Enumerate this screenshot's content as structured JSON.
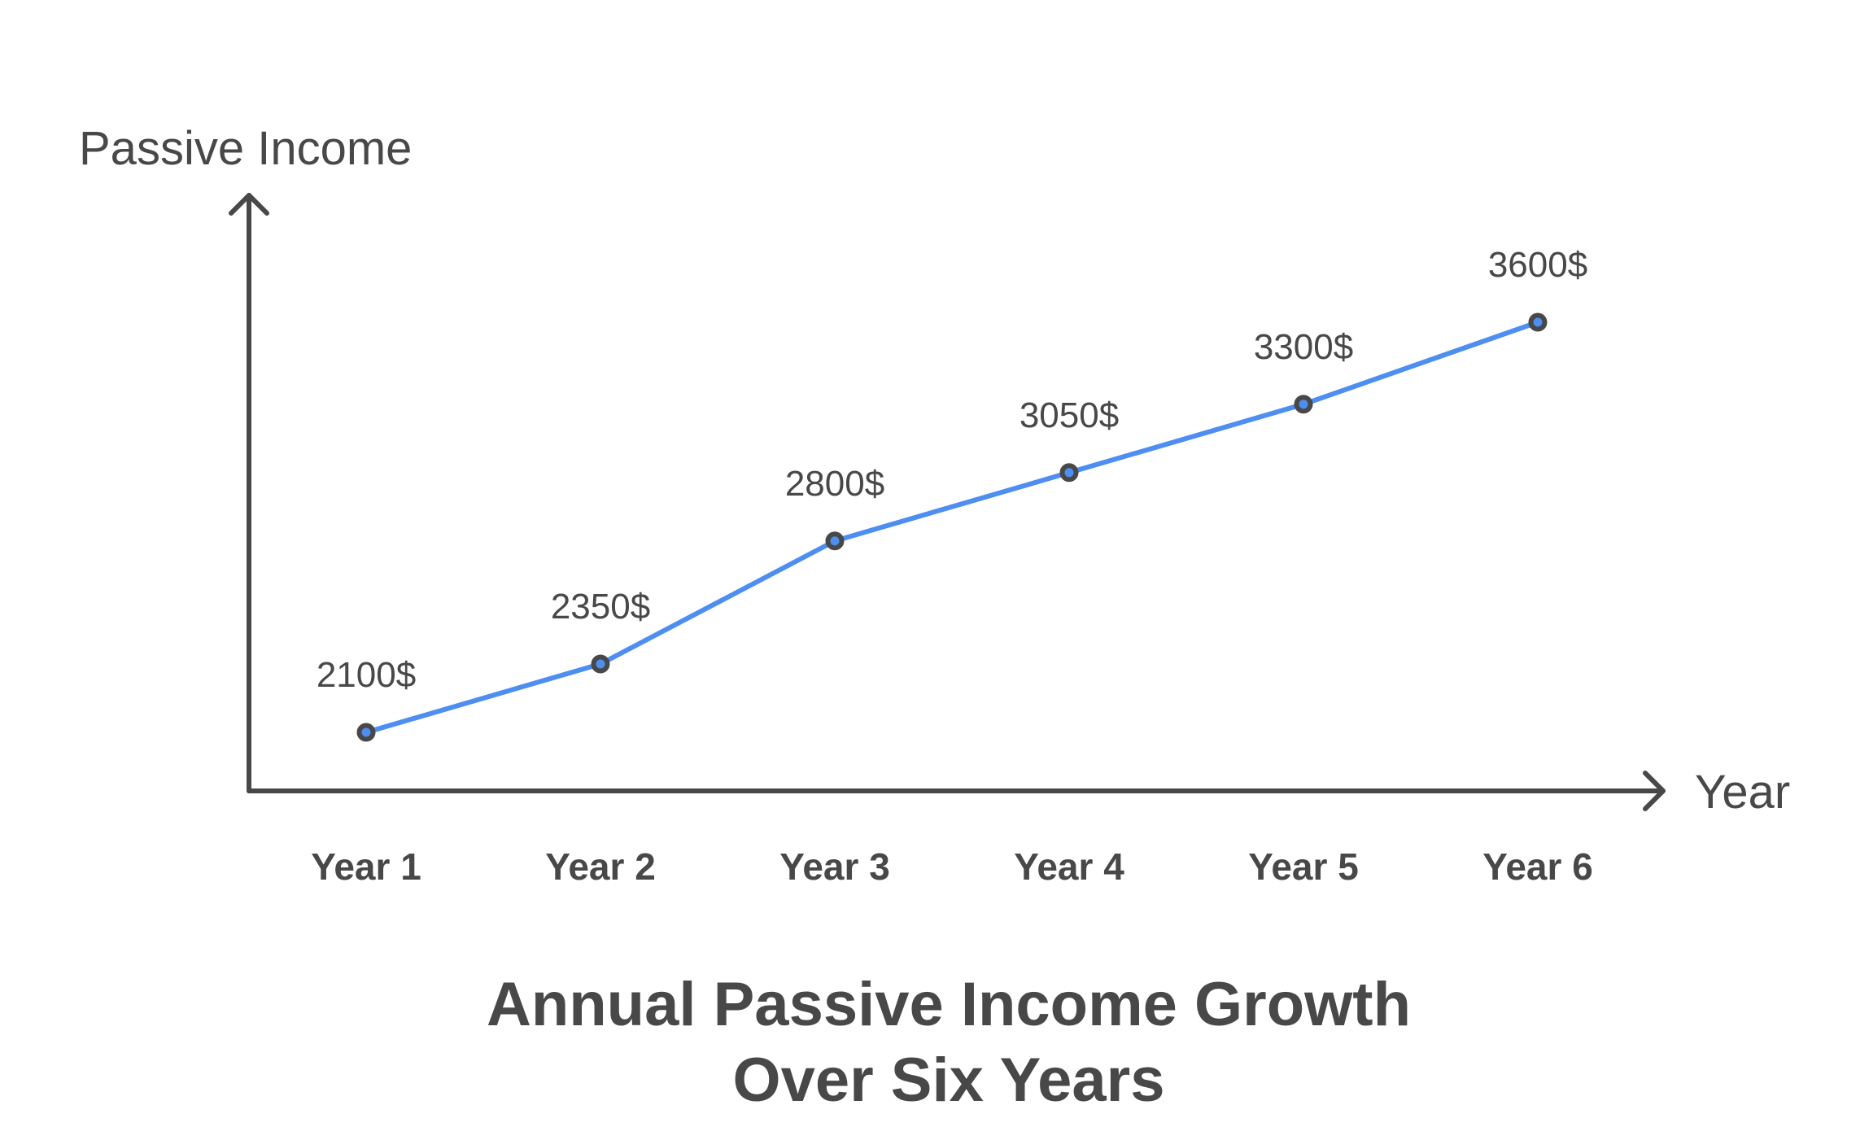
{
  "chart_data": {
    "type": "line",
    "title": "Annual Passive Income Growth Over Six Years",
    "title_lines": [
      "Annual Passive Income Growth",
      "Over Six Years"
    ],
    "xlabel": "Year",
    "ylabel": "Passive Income",
    "categories": [
      "Year 1",
      "Year 2",
      "Year 3",
      "Year 4",
      "Year 5",
      "Year 6"
    ],
    "values": [
      2100,
      2350,
      2800,
      3050,
      3300,
      3600
    ],
    "value_labels": [
      "2100$",
      "2350$",
      "2800$",
      "3050$",
      "3300$",
      "3600$"
    ],
    "series": [
      {
        "name": "Passive Income",
        "values": [
          2100,
          2350,
          2800,
          3050,
          3300,
          3600
        ]
      }
    ],
    "grid": false,
    "legend": "none",
    "colors": {
      "line": "#4d8ef0",
      "axis": "#484848",
      "marker_outline": "#484848",
      "text": "#484848"
    }
  }
}
